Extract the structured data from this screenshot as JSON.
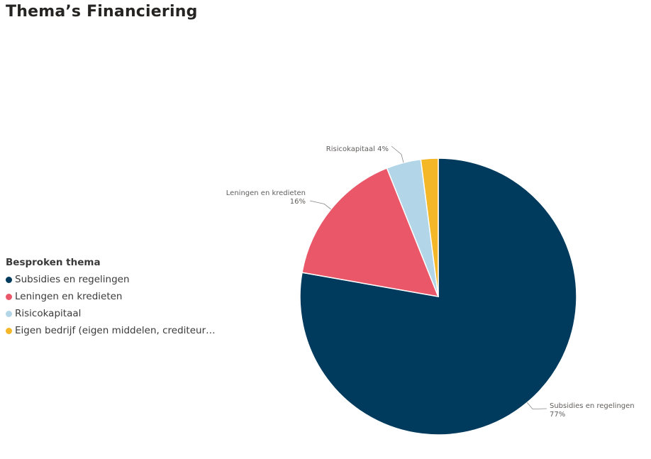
{
  "header": {
    "title": "Thema’s Financiering"
  },
  "legend": {
    "title": "Besproken thema",
    "items": [
      {
        "label": "Subsidies en regelingen",
        "color": "#003a5d"
      },
      {
        "label": "Leningen en kredieten",
        "color": "#ea5769"
      },
      {
        "label": "Risicokapitaal",
        "color": "#b2d6e8"
      },
      {
        "label": "Eigen bedrijf (eigen middelen, crediteur…",
        "color": "#f4b728"
      }
    ]
  },
  "chart_data": {
    "type": "pie",
    "title": "Thema’s Financiering",
    "legend_title": "Besproken thema",
    "legend_position": "left",
    "slices": [
      {
        "name": "Subsidies en regelingen",
        "value": 77,
        "color": "#003a5d",
        "label_lines": [
          "Subsidies en regelingen",
          "77%"
        ]
      },
      {
        "name": "Leningen en kredieten",
        "value": 16,
        "color": "#ea5769",
        "label_lines": [
          "Leningen en kredieten",
          "16%"
        ]
      },
      {
        "name": "Risicokapitaal",
        "value": 4,
        "color": "#b2d6e8",
        "label_lines": [
          "Risicokapitaal 4%"
        ]
      },
      {
        "name": "Eigen bedrijf (eigen middelen, crediteuren)",
        "value": 2,
        "color": "#f4b728",
        "label_lines": []
      }
    ]
  }
}
